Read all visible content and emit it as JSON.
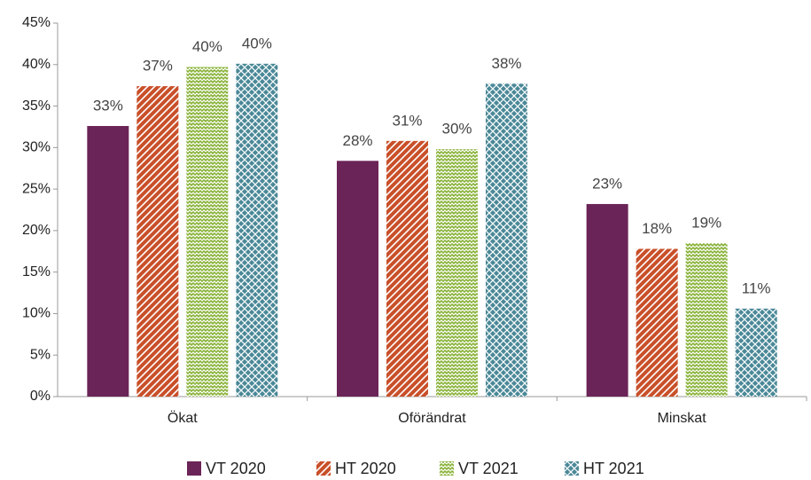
{
  "chart_data": {
    "type": "bar",
    "categories": [
      "Ökat",
      "Oförändrat",
      "Minskat"
    ],
    "series": [
      {
        "name": "VT 2020",
        "color": "#6b2457",
        "pattern": "solid",
        "values": [
          32.6,
          28.4,
          23.2
        ],
        "value_labels": [
          "33%",
          "28%",
          "23%"
        ]
      },
      {
        "name": "HT 2020",
        "color": "#c9502a",
        "pattern": "diagonal",
        "values": [
          37.4,
          30.8,
          17.8
        ],
        "value_labels": [
          "37%",
          "31%",
          "18%"
        ]
      },
      {
        "name": "VT 2021",
        "color": "#8ab33a",
        "pattern": "zigzag",
        "values": [
          39.7,
          29.8,
          18.5
        ],
        "value_labels": [
          "40%",
          "30%",
          "19%"
        ]
      },
      {
        "name": "HT 2021",
        "color": "#4a8897",
        "pattern": "diamond",
        "values": [
          40.1,
          37.7,
          10.6
        ],
        "value_labels": [
          "40%",
          "38%",
          "11%"
        ]
      }
    ],
    "ylim": [
      0,
      45
    ],
    "yticks": [
      {
        "value": 0,
        "label": "0%"
      },
      {
        "value": 5,
        "label": "5%"
      },
      {
        "value": 10,
        "label": "10%"
      },
      {
        "value": 15,
        "label": "15%"
      },
      {
        "value": 20,
        "label": "20%"
      },
      {
        "value": 25,
        "label": "25%"
      },
      {
        "value": 30,
        "label": "30%"
      },
      {
        "value": 35,
        "label": "35%"
      },
      {
        "value": 40,
        "label": "40%"
      },
      {
        "value": 45,
        "label": "45%"
      }
    ],
    "grid": false,
    "legend": "bottom"
  }
}
